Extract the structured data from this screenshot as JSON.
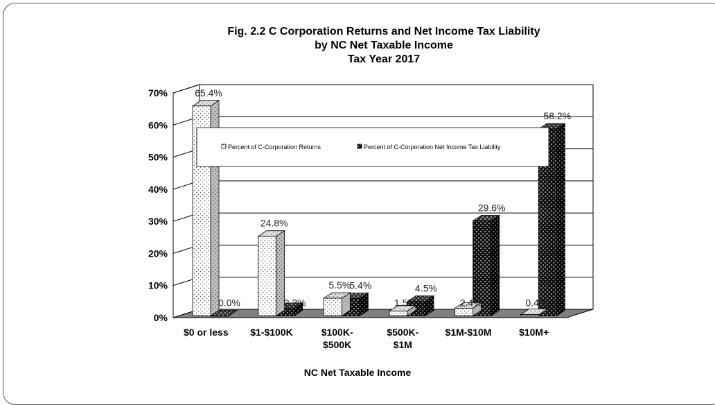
{
  "chart_data": {
    "type": "bar",
    "title_lines": [
      "Fig. 2.2  C Corporation Returns and Net Income Tax Liability",
      "by NC Net Taxable Income",
      "Tax Year 2017"
    ],
    "xlabel": "NC Net Taxable Income",
    "ylabel": "",
    "categories": [
      [
        "$0 or less"
      ],
      [
        "$1-$100K"
      ],
      [
        "$100K-",
        "$500K"
      ],
      [
        "$500K-",
        "$1M"
      ],
      [
        "$1M-$10M"
      ],
      [
        "$10M+"
      ]
    ],
    "series": [
      {
        "name": "Percent of C-Corporation Returns",
        "values": [
          65.4,
          24.8,
          5.5,
          1.5,
          2.4,
          0.4
        ],
        "labels": [
          "65.4%",
          "24.8%",
          "5.5%",
          "1.5%",
          "2.4%",
          "0.4%"
        ]
      },
      {
        "name": "Percent of C-Corporation Net Income Tax Liability",
        "values": [
          0.0,
          2.3,
          5.4,
          4.5,
          29.6,
          58.2
        ],
        "labels": [
          "0.0%",
          "2.3%",
          "5.4%",
          "4.5%",
          "29.6%",
          "58.2%"
        ]
      }
    ],
    "ylim": [
      0,
      70
    ],
    "yticks": [
      "0%",
      "10%",
      "20%",
      "30%",
      "40%",
      "50%",
      "60%",
      "70%"
    ],
    "grid": true,
    "legend_position": "upper-center, inside plot",
    "colors": {
      "series1_fill": "#ffffff",
      "series2_fill": "#1a1a1a",
      "floor": "#808080"
    }
  }
}
